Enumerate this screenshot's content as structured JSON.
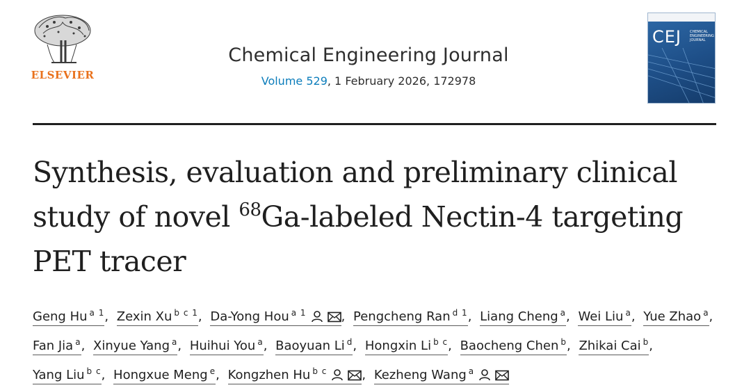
{
  "publisher": {
    "name": "ELSEVIER",
    "logo_icon": "elsevier-tree-logo-icon"
  },
  "journal": {
    "title": "Chemical Engineering Journal",
    "volume_label": "Volume 529",
    "issue_rest": ", 1 February 2026, 172978",
    "cover": {
      "abbr": "CEJ",
      "name": "CHEMICAL ENGINEERING JOURNAL"
    }
  },
  "article": {
    "title_part1": "Synthesis, evaluation and preliminary clinical study of novel ",
    "title_sup": "68",
    "title_part2": "Ga-labeled Nectin-4 targeting PET tracer"
  },
  "authors": [
    {
      "name": "Geng Hu",
      "aff": "a 1"
    },
    {
      "name": "Zexin Xu",
      "aff": "b c 1"
    },
    {
      "name": "Da-Yong Hou",
      "aff": "a 1",
      "icons": [
        "person-icon",
        "envelope-icon"
      ]
    },
    {
      "name": "Pengcheng Ran",
      "aff": "d 1"
    },
    {
      "name": "Liang Cheng",
      "aff": "a"
    },
    {
      "name": "Wei Liu",
      "aff": "a"
    },
    {
      "name": "Yue Zhao",
      "aff": "a"
    },
    {
      "name": "Fan Jia",
      "aff": "a"
    },
    {
      "name": "Xinyue Yang",
      "aff": "a"
    },
    {
      "name": "Huihui You",
      "aff": "a"
    },
    {
      "name": "Baoyuan Li",
      "aff": "d"
    },
    {
      "name": "Hongxin Li",
      "aff": "b c"
    },
    {
      "name": "Baocheng Chen",
      "aff": "b"
    },
    {
      "name": "Zhikai Cai",
      "aff": "b"
    },
    {
      "name": "Yang Liu",
      "aff": "b c"
    },
    {
      "name": "Hongxue Meng",
      "aff": "e"
    },
    {
      "name": "Kongzhen Hu",
      "aff": "b c",
      "icons": [
        "person-icon",
        "envelope-icon"
      ]
    },
    {
      "name": "Kezheng Wang",
      "aff": "a",
      "icons": [
        "person-icon",
        "envelope-icon"
      ]
    }
  ],
  "colors": {
    "link": "#0c7dbb",
    "publisher": "#e9711c",
    "text": "#1f1f1f"
  }
}
